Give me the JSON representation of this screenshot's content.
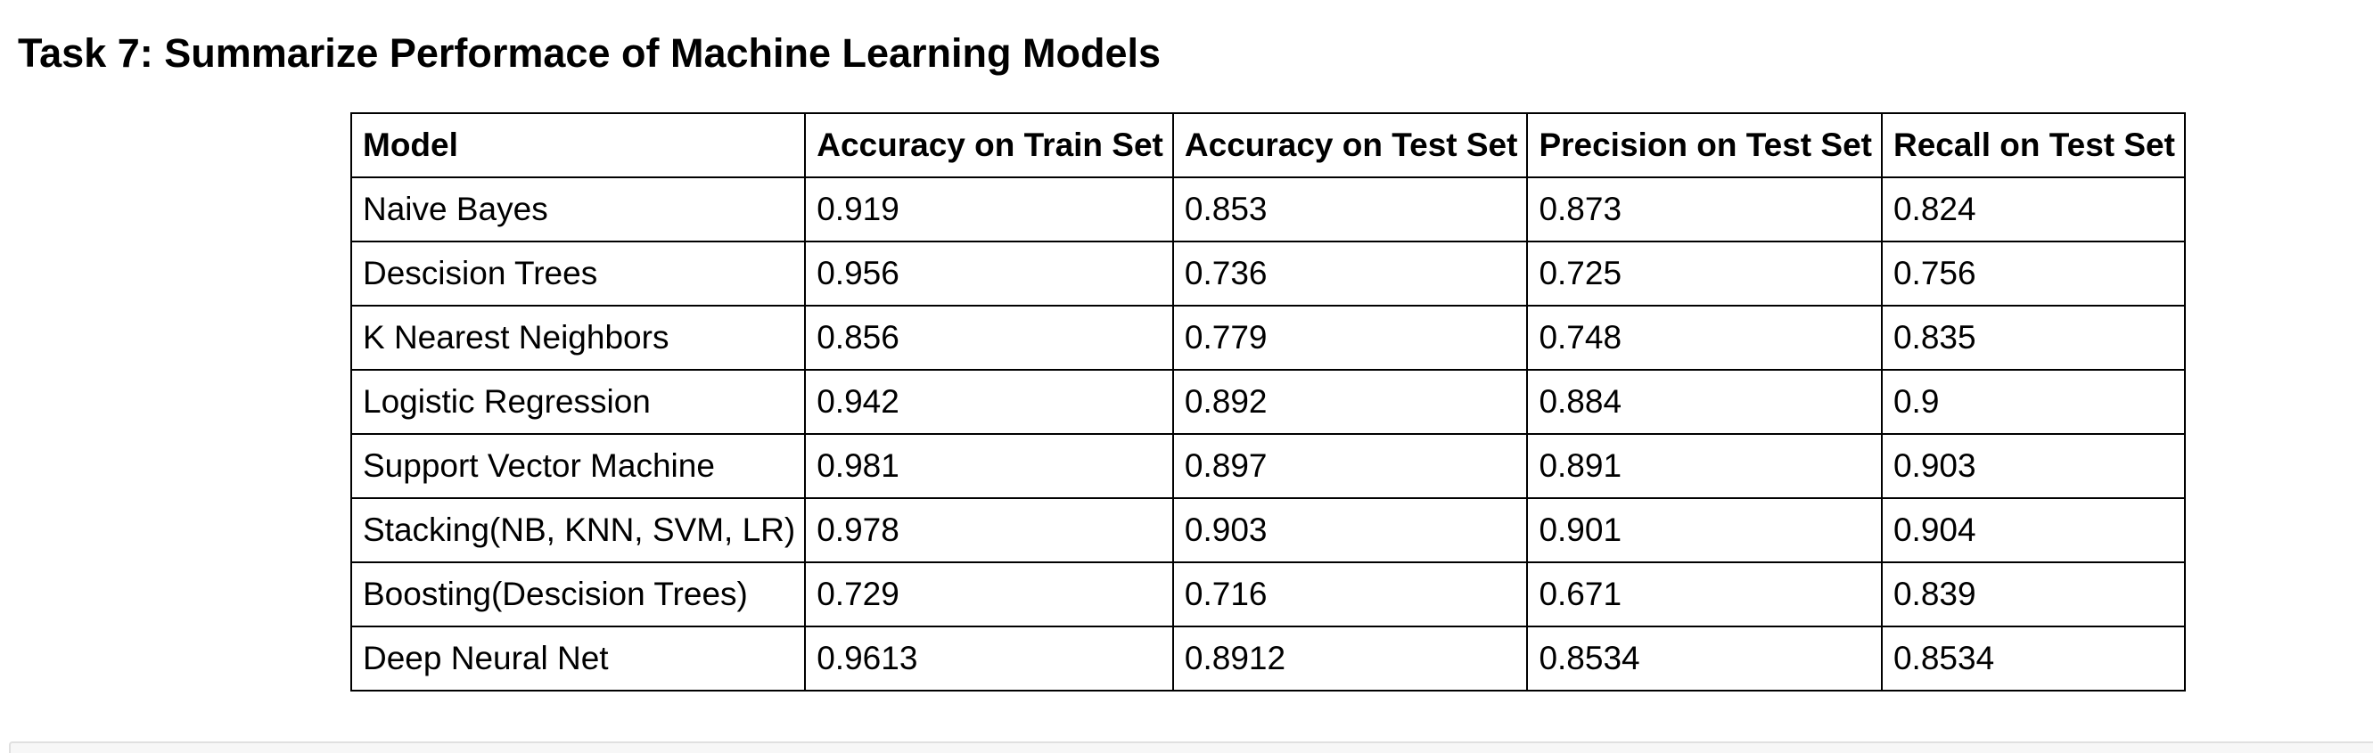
{
  "title": "Task 7: Summarize Performace of Machine Learning Models",
  "table": {
    "headers": [
      "Model",
      "Accuracy on Train Set",
      "Accuracy on Test Set",
      "Precision on Test Set",
      "Recall on Test Set"
    ],
    "rows": [
      [
        "Naive Bayes",
        "0.919",
        "0.853",
        "0.873",
        "0.824"
      ],
      [
        "Descision Trees",
        "0.956",
        "0.736",
        "0.725",
        "0.756"
      ],
      [
        "K Nearest Neighbors",
        "0.856",
        "0.779",
        "0.748",
        "0.835"
      ],
      [
        "Logistic Regression",
        "0.942",
        "0.892",
        "0.884",
        "0.9"
      ],
      [
        "Support Vector Machine",
        "0.981",
        "0.897",
        "0.891",
        "0.903"
      ],
      [
        "Stacking(NB, KNN, SVM, LR)",
        "0.978",
        "0.903",
        "0.901",
        "0.904"
      ],
      [
        "Boosting(Descision Trees)",
        "0.729",
        "0.716",
        "0.671",
        "0.839"
      ],
      [
        "Deep Neural Net",
        "0.9613",
        "0.8912",
        "0.8534",
        "0.8534"
      ]
    ]
  }
}
